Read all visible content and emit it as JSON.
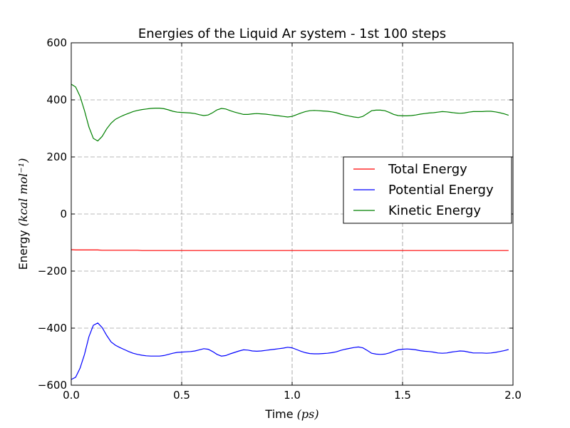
{
  "chart_data": {
    "type": "line",
    "title": "Energies of the Liquid Ar system - 1st 100 steps",
    "xlabel": "Time",
    "xlabel_unit": "(ps)",
    "ylabel": "Energy",
    "ylabel_unit": "(kcal mol⁻¹)",
    "xlim": [
      0.0,
      2.0
    ],
    "ylim": [
      -600,
      600
    ],
    "xticks": [
      0.0,
      0.5,
      1.0,
      1.5,
      2.0
    ],
    "xtick_labels": [
      "0.0",
      "0.5",
      "1.0",
      "1.5",
      "2.0"
    ],
    "yticks": [
      -600,
      -400,
      -200,
      0,
      200,
      400,
      600
    ],
    "ytick_labels": [
      "−600",
      "−400",
      "−200",
      "0",
      "200",
      "400",
      "600"
    ],
    "grid": true,
    "legend_position": "center-right",
    "x": [
      0.0,
      0.02,
      0.04,
      0.06,
      0.08,
      0.1,
      0.12,
      0.14,
      0.16,
      0.18,
      0.2,
      0.22,
      0.24,
      0.26,
      0.28,
      0.3,
      0.32,
      0.34,
      0.36,
      0.38,
      0.4,
      0.42,
      0.44,
      0.46,
      0.48,
      0.5,
      0.52,
      0.54,
      0.56,
      0.58,
      0.6,
      0.62,
      0.64,
      0.66,
      0.68,
      0.7,
      0.72,
      0.74,
      0.76,
      0.78,
      0.8,
      0.82,
      0.84,
      0.86,
      0.88,
      0.9,
      0.92,
      0.94,
      0.96,
      0.98,
      1.0,
      1.02,
      1.04,
      1.06,
      1.08,
      1.1,
      1.12,
      1.14,
      1.16,
      1.18,
      1.2,
      1.22,
      1.24,
      1.26,
      1.28,
      1.3,
      1.32,
      1.34,
      1.36,
      1.38,
      1.4,
      1.42,
      1.44,
      1.46,
      1.48,
      1.5,
      1.52,
      1.54,
      1.56,
      1.58,
      1.6,
      1.62,
      1.64,
      1.66,
      1.68,
      1.7,
      1.72,
      1.74,
      1.76,
      1.78,
      1.8,
      1.82,
      1.84,
      1.86,
      1.88,
      1.9,
      1.92,
      1.94,
      1.96,
      1.98
    ],
    "series": [
      {
        "name": "Total Energy",
        "color": "#ff0000",
        "values": [
          -125,
          -126,
          -126,
          -126,
          -126,
          -126,
          -126,
          -127,
          -127,
          -127,
          -127,
          -127,
          -127,
          -127,
          -127,
          -127,
          -128,
          -128,
          -128,
          -128,
          -128,
          -128,
          -128,
          -128,
          -128,
          -128,
          -128,
          -128,
          -128,
          -128,
          -128,
          -128,
          -128,
          -128,
          -128,
          -128,
          -128,
          -128,
          -128,
          -128,
          -128,
          -128,
          -128,
          -128,
          -128,
          -128,
          -128,
          -128,
          -128,
          -128,
          -128,
          -128,
          -128,
          -128,
          -128,
          -128,
          -128,
          -128,
          -128,
          -128,
          -128,
          -128,
          -128,
          -128,
          -128,
          -128,
          -128,
          -128,
          -128,
          -128,
          -128,
          -128,
          -128,
          -128,
          -128,
          -128,
          -128,
          -128,
          -128,
          -128,
          -128,
          -128,
          -128,
          -128,
          -128,
          -128,
          -128,
          -128,
          -128,
          -128,
          -128,
          -128,
          -128,
          -128,
          -128,
          -128,
          -128,
          -128,
          -128,
          -128
        ]
      },
      {
        "name": "Potential Energy",
        "color": "#0000ff",
        "values": [
          -580,
          -572,
          -540,
          -492,
          -430,
          -390,
          -382,
          -398,
          -425,
          -448,
          -460,
          -468,
          -475,
          -482,
          -488,
          -492,
          -495,
          -497,
          -498,
          -498,
          -498,
          -496,
          -492,
          -488,
          -485,
          -484,
          -483,
          -482,
          -480,
          -476,
          -472,
          -474,
          -482,
          -492,
          -498,
          -496,
          -490,
          -485,
          -480,
          -476,
          -477,
          -480,
          -481,
          -480,
          -478,
          -476,
          -474,
          -472,
          -470,
          -467,
          -469,
          -475,
          -481,
          -486,
          -489,
          -490,
          -490,
          -489,
          -488,
          -486,
          -483,
          -478,
          -474,
          -471,
          -468,
          -466,
          -469,
          -478,
          -488,
          -491,
          -492,
          -491,
          -487,
          -481,
          -476,
          -474,
          -473,
          -474,
          -476,
          -479,
          -481,
          -482,
          -484,
          -487,
          -488,
          -487,
          -484,
          -482,
          -480,
          -481,
          -484,
          -487,
          -487,
          -487,
          -488,
          -487,
          -485,
          -482,
          -479,
          -475
        ]
      },
      {
        "name": "Kinetic Energy",
        "color": "#008000",
        "values": [
          455,
          445,
          412,
          362,
          305,
          265,
          256,
          272,
          298,
          318,
          332,
          340,
          347,
          353,
          359,
          363,
          366,
          368,
          370,
          371,
          371,
          369,
          365,
          360,
          357,
          356,
          355,
          354,
          352,
          348,
          345,
          347,
          355,
          365,
          370,
          368,
          362,
          357,
          353,
          349,
          349,
          351,
          352,
          351,
          350,
          348,
          346,
          344,
          342,
          340,
          342,
          348,
          354,
          359,
          362,
          363,
          362,
          361,
          360,
          358,
          355,
          350,
          346,
          343,
          340,
          338,
          342,
          352,
          362,
          364,
          364,
          362,
          356,
          349,
          345,
          344,
          344,
          345,
          347,
          350,
          352,
          354,
          355,
          357,
          359,
          358,
          356,
          354,
          353,
          354,
          357,
          359,
          359,
          359,
          360,
          360,
          358,
          355,
          351,
          346
        ]
      }
    ]
  }
}
